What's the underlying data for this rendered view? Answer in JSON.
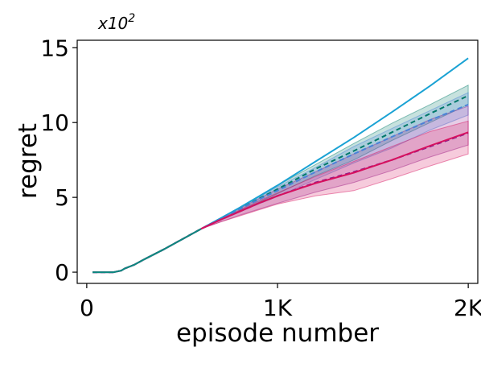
{
  "chart_data": {
    "type": "line",
    "title": "",
    "xlabel": "episode number",
    "ylabel": "regret",
    "y_multiplier_base": "x10",
    "y_multiplier_exp": "2",
    "xlim": [
      -50,
      2050
    ],
    "ylim": [
      -75,
      1550
    ],
    "xticks": [
      0,
      1000,
      2000
    ],
    "xtick_labels": [
      "0",
      "1K",
      "2K"
    ],
    "yticks": [
      0,
      500,
      1000,
      1500
    ],
    "ytick_labels": [
      "0",
      "5",
      "10",
      "15"
    ],
    "grid": false,
    "legend": "none",
    "series": [
      {
        "color": "#1aa2d4",
        "dash": "solid",
        "x": [
          30,
          100,
          140,
          180,
          200,
          250,
          300,
          400,
          500,
          600,
          700,
          800,
          900,
          1000,
          1200,
          1400,
          1600,
          1800,
          2000
        ],
        "y": [
          0,
          0,
          0,
          10,
          25,
          50,
          85,
          150,
          220,
          290,
          360,
          430,
          505,
          580,
          740,
          900,
          1070,
          1245,
          1430
        ],
        "band_low": null,
        "band_high": null
      },
      {
        "color": "#00796b",
        "dash": "dash",
        "x": [
          30,
          100,
          140,
          180,
          200,
          250,
          300,
          400,
          500,
          600,
          700,
          800,
          900,
          1000,
          1200,
          1400,
          1600,
          1800,
          2000
        ],
        "y": [
          0,
          0,
          0,
          10,
          25,
          50,
          85,
          150,
          220,
          290,
          355,
          420,
          490,
          555,
          690,
          810,
          935,
          1060,
          1180
        ],
        "band_low": [
          0,
          0,
          0,
          10,
          25,
          50,
          85,
          150,
          220,
          290,
          350,
          410,
          465,
          525,
          645,
          750,
          880,
          1000,
          1120
        ],
        "band_high": [
          0,
          0,
          0,
          10,
          25,
          50,
          85,
          150,
          220,
          290,
          360,
          430,
          505,
          580,
          720,
          860,
          995,
          1120,
          1250
        ]
      },
      {
        "color": "#4a82d8",
        "dash": "dash",
        "x": [
          30,
          100,
          140,
          180,
          200,
          250,
          300,
          400,
          500,
          600,
          700,
          800,
          900,
          1000,
          1200,
          1400,
          1600,
          1800,
          2000
        ],
        "y": [
          0,
          0,
          0,
          10,
          25,
          50,
          85,
          150,
          220,
          290,
          355,
          420,
          485,
          545,
          670,
          790,
          905,
          1015,
          1120
        ],
        "band_low": [
          0,
          0,
          0,
          10,
          25,
          50,
          85,
          150,
          220,
          290,
          345,
          400,
          455,
          505,
          620,
          730,
          830,
          950,
          1050
        ],
        "band_high": [
          0,
          0,
          0,
          10,
          25,
          50,
          85,
          150,
          220,
          290,
          360,
          430,
          500,
          570,
          700,
          840,
          960,
          1080,
          1200
        ]
      },
      {
        "color": "#8c1d8c",
        "dash": "dash",
        "x": [
          30,
          100,
          140,
          180,
          200,
          250,
          300,
          400,
          500,
          600,
          700,
          800,
          900,
          1000,
          1200,
          1400,
          1600,
          1800,
          2000
        ],
        "y": [
          0,
          0,
          0,
          10,
          25,
          50,
          85,
          150,
          220,
          290,
          350,
          405,
          460,
          510,
          600,
          670,
          750,
          840,
          930
        ],
        "band_low": [
          0,
          0,
          0,
          10,
          25,
          50,
          85,
          150,
          220,
          290,
          335,
          380,
          420,
          460,
          535,
          600,
          680,
          770,
          850
        ],
        "band_high": [
          0,
          0,
          0,
          10,
          25,
          50,
          85,
          150,
          220,
          290,
          360,
          425,
          490,
          555,
          670,
          790,
          905,
          1020,
          1110
        ]
      },
      {
        "color": "#d6105e",
        "dash": "solid",
        "x": [
          30,
          100,
          140,
          180,
          200,
          250,
          300,
          400,
          500,
          600,
          700,
          800,
          900,
          1000,
          1200,
          1400,
          1600,
          1800,
          2000
        ],
        "y": [
          0,
          0,
          0,
          10,
          25,
          50,
          85,
          150,
          220,
          290,
          350,
          405,
          460,
          510,
          595,
          665,
          750,
          845,
          935
        ],
        "band_low": [
          0,
          0,
          0,
          10,
          25,
          50,
          85,
          150,
          220,
          290,
          335,
          375,
          415,
          455,
          510,
          545,
          625,
          710,
          790
        ],
        "band_high": [
          0,
          0,
          0,
          10,
          25,
          50,
          85,
          150,
          220,
          290,
          355,
          415,
          475,
          530,
          640,
          740,
          840,
          940,
          1010
        ]
      },
      {
        "color": "#0a8a80",
        "dash": "solid",
        "x": [
          30,
          100,
          140,
          180,
          200,
          250,
          300,
          400,
          500,
          600
        ],
        "y": [
          0,
          0,
          0,
          10,
          25,
          50,
          85,
          150,
          220,
          290
        ],
        "band_low": null,
        "band_high": null
      }
    ]
  }
}
